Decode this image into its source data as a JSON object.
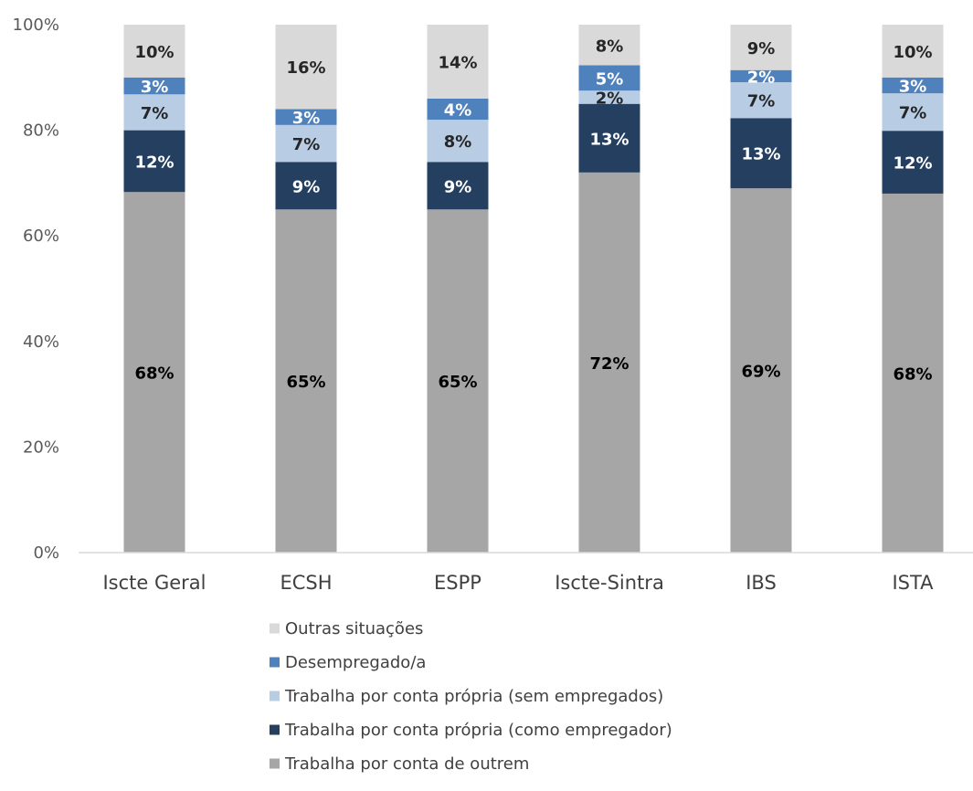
{
  "chart_data": {
    "type": "bar",
    "stacked": true,
    "orientation": "vertical",
    "categories": [
      "Iscte Geral",
      "ECSH",
      "ESPP",
      "Iscte-Sintra",
      "IBS",
      "ISTA"
    ],
    "ylim": [
      0,
      100
    ],
    "yticks": [
      "0%",
      "20%",
      "40%",
      "60%",
      "80%",
      "100%"
    ],
    "grid": false,
    "legend_position": "bottom",
    "series": [
      {
        "name": "Trabalha por conta de outrem",
        "color": "#a6a6a6",
        "label_color": "#000000",
        "values": [
          68.3,
          65,
          65,
          72,
          69,
          68
        ],
        "labels": [
          "68%",
          "65%",
          "65%",
          "72%",
          "69%",
          "68%"
        ]
      },
      {
        "name": "Trabalha por conta própria (como empregador)",
        "color": "#243f60",
        "label_color": "#ffffff",
        "values": [
          11.7,
          9,
          9,
          13,
          13.3,
          11.9
        ],
        "labels": [
          "12%",
          "9%",
          "9%",
          "13%",
          "13%",
          "12%"
        ]
      },
      {
        "name": "Trabalha por conta própria (sem empregados)",
        "color": "#b8cce4",
        "label_color": "#262626",
        "values": [
          6.8,
          7,
          8,
          2.5,
          6.8,
          7.1
        ],
        "labels": [
          "7%",
          "7%",
          "8%",
          "2%",
          "7%",
          "7%"
        ]
      },
      {
        "name": "Desempregado/a",
        "color": "#4f81bd",
        "label_color": "#ffffff",
        "values": [
          3.2,
          3,
          4,
          4.8,
          2.3,
          3
        ],
        "labels": [
          "3%",
          "3%",
          "4%",
          "5%",
          "2%",
          "3%"
        ]
      },
      {
        "name": "Outras situações",
        "color": "#d9d9d9",
        "label_color": "#262626",
        "values": [
          10,
          16,
          14,
          7.7,
          8.6,
          10
        ],
        "labels": [
          "10%",
          "16%",
          "14%",
          "8%",
          "9%",
          "10%"
        ]
      }
    ]
  }
}
